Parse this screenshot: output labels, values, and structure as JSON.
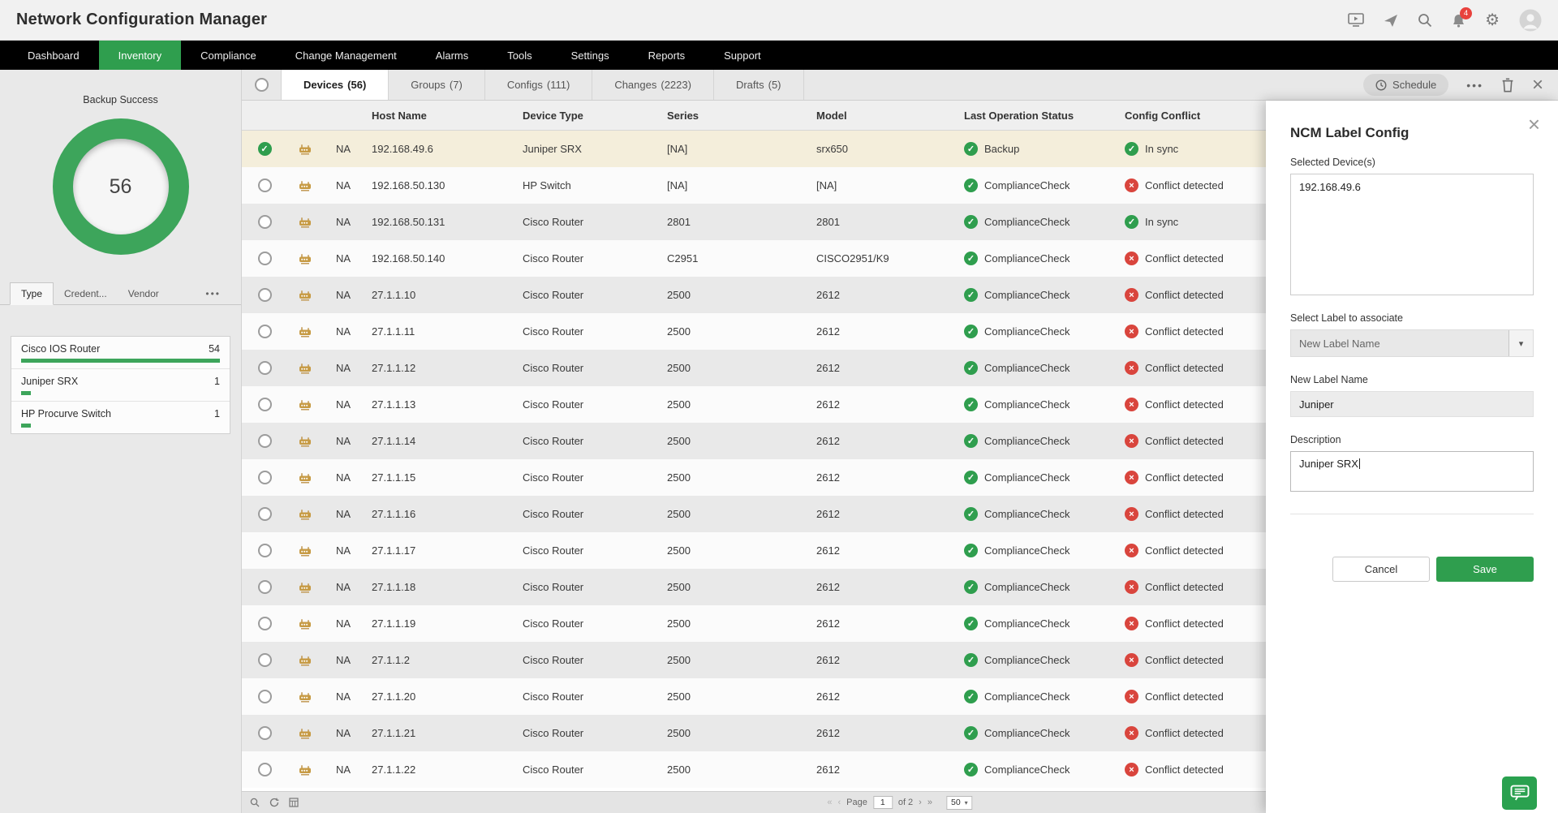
{
  "app": {
    "title": "Network Configuration Manager"
  },
  "topbar": {
    "notification_count": "4",
    "icons": [
      "present-icon",
      "rocket-icon",
      "search-icon",
      "bell-icon",
      "gear-icon",
      "user-avatar"
    ]
  },
  "nav": {
    "active_index": 1,
    "items": [
      {
        "label": "Dashboard"
      },
      {
        "label": "Inventory"
      },
      {
        "label": "Compliance"
      },
      {
        "label": "Change Management"
      },
      {
        "label": "Alarms"
      },
      {
        "label": "Tools"
      },
      {
        "label": "Settings"
      },
      {
        "label": "Reports"
      },
      {
        "label": "Support"
      }
    ]
  },
  "sidebar": {
    "chart": {
      "label": "Backup Success",
      "value": "56"
    },
    "tabs": {
      "items": [
        "Type",
        "Credent...",
        "Vendor"
      ],
      "active_index": 0,
      "more_label": "•••"
    },
    "device_types": [
      {
        "name": "Cisco IOS Router",
        "count": "54",
        "pct": 100
      },
      {
        "name": "Juniper SRX",
        "count": "1",
        "pct": 5
      },
      {
        "name": "HP Procurve Switch",
        "count": "1",
        "pct": 5
      }
    ]
  },
  "content_tabs": {
    "active_index": 0,
    "items": [
      {
        "label": "Devices",
        "count": "(56)"
      },
      {
        "label": "Groups",
        "count": "(7)"
      },
      {
        "label": "Configs",
        "count": "(111)"
      },
      {
        "label": "Changes",
        "count": "(2223)"
      },
      {
        "label": "Drafts",
        "count": "(5)"
      }
    ]
  },
  "toolbar": {
    "schedule_label": "Schedule",
    "more_label": "•••"
  },
  "table": {
    "columns": [
      "Host Name",
      "Device Type",
      "Series",
      "Model",
      "Last Operation Status",
      "Config Conflict"
    ],
    "rows": [
      {
        "na": "NA",
        "host": "192.168.49.6",
        "type": "Juniper SRX",
        "series": "[NA]",
        "model": "srx650",
        "op": "Backup",
        "conflict": "In sync",
        "conflict_ok": true,
        "selected": true
      },
      {
        "na": "NA",
        "host": "192.168.50.130",
        "type": "HP Switch",
        "series": "[NA]",
        "model": "[NA]",
        "op": "ComplianceCheck",
        "conflict": "Conflict detected",
        "conflict_ok": false
      },
      {
        "na": "NA",
        "host": "192.168.50.131",
        "type": "Cisco Router",
        "series": "2801",
        "model": "2801",
        "op": "ComplianceCheck",
        "conflict": "In sync",
        "conflict_ok": true
      },
      {
        "na": "NA",
        "host": "192.168.50.140",
        "type": "Cisco Router",
        "series": "C2951",
        "model": "CISCO2951/K9",
        "op": "ComplianceCheck",
        "conflict": "Conflict detected",
        "conflict_ok": false
      },
      {
        "na": "NA",
        "host": "27.1.1.10",
        "type": "Cisco Router",
        "series": "2500",
        "model": "2612",
        "op": "ComplianceCheck",
        "conflict": "Conflict detected",
        "conflict_ok": false
      },
      {
        "na": "NA",
        "host": "27.1.1.11",
        "type": "Cisco Router",
        "series": "2500",
        "model": "2612",
        "op": "ComplianceCheck",
        "conflict": "Conflict detected",
        "conflict_ok": false
      },
      {
        "na": "NA",
        "host": "27.1.1.12",
        "type": "Cisco Router",
        "series": "2500",
        "model": "2612",
        "op": "ComplianceCheck",
        "conflict": "Conflict detected",
        "conflict_ok": false
      },
      {
        "na": "NA",
        "host": "27.1.1.13",
        "type": "Cisco Router",
        "series": "2500",
        "model": "2612",
        "op": "ComplianceCheck",
        "conflict": "Conflict detected",
        "conflict_ok": false
      },
      {
        "na": "NA",
        "host": "27.1.1.14",
        "type": "Cisco Router",
        "series": "2500",
        "model": "2612",
        "op": "ComplianceCheck",
        "conflict": "Conflict detected",
        "conflict_ok": false
      },
      {
        "na": "NA",
        "host": "27.1.1.15",
        "type": "Cisco Router",
        "series": "2500",
        "model": "2612",
        "op": "ComplianceCheck",
        "conflict": "Conflict detected",
        "conflict_ok": false
      },
      {
        "na": "NA",
        "host": "27.1.1.16",
        "type": "Cisco Router",
        "series": "2500",
        "model": "2612",
        "op": "ComplianceCheck",
        "conflict": "Conflict detected",
        "conflict_ok": false
      },
      {
        "na": "NA",
        "host": "27.1.1.17",
        "type": "Cisco Router",
        "series": "2500",
        "model": "2612",
        "op": "ComplianceCheck",
        "conflict": "Conflict detected",
        "conflict_ok": false
      },
      {
        "na": "NA",
        "host": "27.1.1.18",
        "type": "Cisco Router",
        "series": "2500",
        "model": "2612",
        "op": "ComplianceCheck",
        "conflict": "Conflict detected",
        "conflict_ok": false
      },
      {
        "na": "NA",
        "host": "27.1.1.19",
        "type": "Cisco Router",
        "series": "2500",
        "model": "2612",
        "op": "ComplianceCheck",
        "conflict": "Conflict detected",
        "conflict_ok": false
      },
      {
        "na": "NA",
        "host": "27.1.1.2",
        "type": "Cisco Router",
        "series": "2500",
        "model": "2612",
        "op": "ComplianceCheck",
        "conflict": "Conflict detected",
        "conflict_ok": false
      },
      {
        "na": "NA",
        "host": "27.1.1.20",
        "type": "Cisco Router",
        "series": "2500",
        "model": "2612",
        "op": "ComplianceCheck",
        "conflict": "Conflict detected",
        "conflict_ok": false
      },
      {
        "na": "NA",
        "host": "27.1.1.21",
        "type": "Cisco Router",
        "series": "2500",
        "model": "2612",
        "op": "ComplianceCheck",
        "conflict": "Conflict detected",
        "conflict_ok": false
      },
      {
        "na": "NA",
        "host": "27.1.1.22",
        "type": "Cisco Router",
        "series": "2500",
        "model": "2612",
        "op": "ComplianceCheck",
        "conflict": "Conflict detected",
        "conflict_ok": false
      }
    ]
  },
  "pagination": {
    "page_label": "Page",
    "current": "1",
    "of_label": "of 2",
    "size": "50"
  },
  "panel": {
    "title": "NCM Label Config",
    "selected_devices_label": "Selected Device(s)",
    "selected_devices_value": "192.168.49.6",
    "select_label_label": "Select Label to associate",
    "select_label_value": "New Label Name",
    "new_label_label": "New Label Name",
    "new_label_value": "Juniper",
    "description_label": "Description",
    "description_value": "Juniper SRX",
    "cancel_label": "Cancel",
    "save_label": "Save"
  },
  "colors": {
    "accent_green": "#2f9e4e",
    "donut_green": "#3da55b",
    "error_red": "#d9453d",
    "selected_row": "#f4eedb",
    "nav_bg": "#000000"
  }
}
